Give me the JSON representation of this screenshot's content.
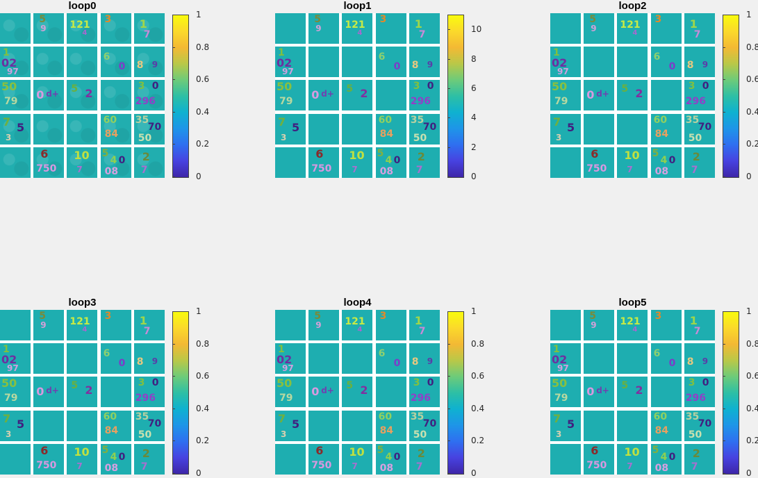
{
  "panels": [
    {
      "title": "loop0",
      "colorbar_ticks": [
        "1",
        "0.8",
        "0.6",
        "0.4",
        "0.2",
        "0"
      ]
    },
    {
      "title": "loop1",
      "colorbar_ticks": [
        "10",
        "8",
        "6",
        "4",
        "2",
        "0"
      ]
    },
    {
      "title": "loop2",
      "colorbar_ticks": [
        "1",
        "0.8",
        "0.6",
        "0.4",
        "0.2",
        "0"
      ]
    },
    {
      "title": "loop3",
      "colorbar_ticks": [
        "1",
        "0.8",
        "0.6",
        "0.4",
        "0.2",
        "0"
      ]
    },
    {
      "title": "loop4",
      "colorbar_ticks": [
        "1",
        "0.8",
        "0.6",
        "0.4",
        "0.2",
        "0"
      ]
    },
    {
      "title": "loop5",
      "colorbar_ticks": [
        "1",
        "0.8",
        "0.6",
        "0.4",
        "0.2",
        "0"
      ]
    }
  ],
  "tile_background_color": "#1eaeb0",
  "colormap": "parula"
}
